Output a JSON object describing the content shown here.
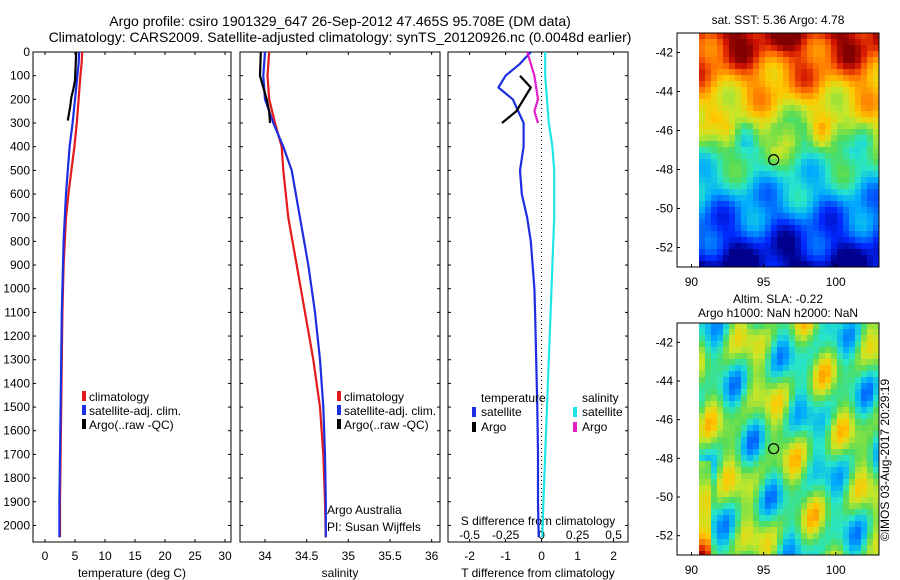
{
  "header": {
    "title_line1": "Argo profile: csiro 1901329_647 26-Sep-2012 47.465S 95.708E (DM data)",
    "title_line2": "Climatology: CARS2009. Satellite-adjusted climatology: synTS_20120926.nc (0.0048d earlier)"
  },
  "colors": {
    "climatology": "#e31a1c",
    "satellite": "#1c2ee0",
    "argo": "#000000",
    "sal_satellite": "#1fe6e6",
    "sal_argo": "#e020c8"
  },
  "chart_data": [
    {
      "type": "line",
      "name": "temperature",
      "xlabel": "temperature (deg C)",
      "ylabel": "",
      "xlim": [
        -2,
        31
      ],
      "ylim": [
        2070,
        0
      ],
      "xticks": [
        0,
        5,
        10,
        15,
        20,
        25,
        30
      ],
      "yticks": [
        0,
        100,
        200,
        300,
        400,
        500,
        600,
        700,
        800,
        900,
        1000,
        1100,
        1200,
        1300,
        1400,
        1500,
        1600,
        1700,
        1800,
        1900,
        2000
      ],
      "legend": [
        "climatology",
        "satellite-adj. clim.",
        "Argo(..raw -QC)"
      ],
      "series": [
        {
          "name": "climatology",
          "points": [
            [
              6.2,
              0
            ],
            [
              6.1,
              50
            ],
            [
              5.9,
              100
            ],
            [
              5.6,
              200
            ],
            [
              5.3,
              300
            ],
            [
              4.9,
              400
            ],
            [
              4.4,
              500
            ],
            [
              3.9,
              600
            ],
            [
              3.5,
              700
            ],
            [
              3.3,
              800
            ],
            [
              3.1,
              900
            ],
            [
              3.0,
              1000
            ],
            [
              2.9,
              1100
            ],
            [
              2.8,
              1300
            ],
            [
              2.7,
              1500
            ],
            [
              2.6,
              1700
            ],
            [
              2.5,
              1900
            ],
            [
              2.5,
              2050
            ]
          ]
        },
        {
          "name": "satellite-adj. clim.",
          "points": [
            [
              5.7,
              0
            ],
            [
              5.6,
              50
            ],
            [
              5.4,
              100
            ],
            [
              5.0,
              200
            ],
            [
              4.6,
              300
            ],
            [
              4.1,
              400
            ],
            [
              3.8,
              500
            ],
            [
              3.5,
              600
            ],
            [
              3.3,
              700
            ],
            [
              3.1,
              800
            ],
            [
              3.0,
              900
            ],
            [
              2.9,
              1000
            ],
            [
              2.8,
              1100
            ],
            [
              2.7,
              1300
            ],
            [
              2.6,
              1500
            ],
            [
              2.5,
              1700
            ],
            [
              2.4,
              1900
            ],
            [
              2.4,
              2050
            ]
          ]
        },
        {
          "name": "Argo(..raw -QC)",
          "points": [
            [
              5.2,
              0
            ],
            [
              5.1,
              60
            ],
            [
              5.0,
              120
            ],
            [
              4.7,
              160
            ],
            [
              4.4,
              190
            ],
            [
              4.2,
              230
            ],
            [
              4.0,
              260
            ],
            [
              3.8,
              290
            ]
          ]
        }
      ]
    },
    {
      "type": "line",
      "name": "salinity",
      "xlabel": "salinity",
      "ylabel": "",
      "xlim": [
        33.7,
        36.1
      ],
      "ylim": [
        2070,
        0
      ],
      "xticks": [
        34,
        34.5,
        35,
        35.5,
        36
      ],
      "legend": [
        "climatology",
        "satellite-adj. clim.",
        "Argo(..raw -QC)"
      ],
      "annotation": [
        "Argo Australia",
        "PI: Susan Wijffels"
      ],
      "series": [
        {
          "name": "climatology",
          "points": [
            [
              34.05,
              0
            ],
            [
              34.03,
              100
            ],
            [
              34.05,
              200
            ],
            [
              34.12,
              300
            ],
            [
              34.2,
              400
            ],
            [
              34.22,
              500
            ],
            [
              34.28,
              700
            ],
            [
              34.38,
              900
            ],
            [
              34.48,
              1100
            ],
            [
              34.58,
              1300
            ],
            [
              34.66,
              1500
            ],
            [
              34.7,
              1700
            ],
            [
              34.72,
              1900
            ],
            [
              34.73,
              2050
            ]
          ]
        },
        {
          "name": "satellite-adj. clim.",
          "points": [
            [
              34.0,
              0
            ],
            [
              33.98,
              100
            ],
            [
              34.0,
              200
            ],
            [
              34.1,
              300
            ],
            [
              34.22,
              400
            ],
            [
              34.32,
              500
            ],
            [
              34.42,
              700
            ],
            [
              34.52,
              900
            ],
            [
              34.6,
              1100
            ],
            [
              34.66,
              1300
            ],
            [
              34.7,
              1500
            ],
            [
              34.72,
              1700
            ],
            [
              34.73,
              1900
            ],
            [
              34.73,
              2050
            ]
          ]
        },
        {
          "name": "Argo(..raw -QC)",
          "points": [
            [
              33.95,
              0
            ],
            [
              33.94,
              100
            ],
            [
              33.98,
              150
            ],
            [
              34.02,
              200
            ],
            [
              34.05,
              250
            ],
            [
              34.06,
              300
            ]
          ]
        }
      ]
    },
    {
      "type": "line",
      "name": "difference",
      "xlabel": "T difference from climatology",
      "x2label": "S difference from climatology",
      "xlim": [
        -2.6,
        2.4
      ],
      "ylim": [
        2070,
        0
      ],
      "xticks": [
        -2,
        -1,
        0,
        1,
        2
      ],
      "x2ticks": [
        "-0.5",
        "-0.25",
        "0",
        "0.25",
        "0.5"
      ],
      "legend_temperature_title": "temperature",
      "legend_salinity_title": "salinity",
      "legend": [
        "satellite",
        "Argo",
        "satellite",
        "Argo"
      ],
      "series": [
        {
          "name": "satellite",
          "points": [
            [
              -0.3,
              0
            ],
            [
              -0.6,
              50
            ],
            [
              -1.0,
              100
            ],
            [
              -1.2,
              150
            ],
            [
              -0.8,
              200
            ],
            [
              -0.5,
              300
            ],
            [
              -0.5,
              400
            ],
            [
              -0.6,
              500
            ],
            [
              -0.55,
              600
            ],
            [
              -0.4,
              700
            ],
            [
              -0.3,
              800
            ],
            [
              -0.25,
              900
            ],
            [
              -0.2,
              1000
            ],
            [
              -0.18,
              1100
            ],
            [
              -0.15,
              1300
            ],
            [
              -0.12,
              1500
            ],
            [
              -0.1,
              1700
            ],
            [
              -0.1,
              1900
            ],
            [
              -0.08,
              2050
            ]
          ]
        },
        {
          "name": "Argo",
          "points": [
            [
              -0.6,
              100
            ],
            [
              -0.3,
              150
            ],
            [
              -0.5,
              200
            ],
            [
              -0.7,
              250
            ],
            [
              -1.1,
              300
            ]
          ]
        },
        {
          "name": "satellite",
          "points": [
            [
              0.1,
              0
            ],
            [
              0.1,
              100
            ],
            [
              0.15,
              200
            ],
            [
              0.2,
              300
            ],
            [
              0.3,
              400
            ],
            [
              0.35,
              500
            ],
            [
              0.35,
              700
            ],
            [
              0.3,
              900
            ],
            [
              0.25,
              1100
            ],
            [
              0.2,
              1300
            ],
            [
              0.15,
              1500
            ],
            [
              0.1,
              1700
            ],
            [
              0.05,
              1900
            ],
            [
              0.02,
              2050
            ]
          ]
        },
        {
          "name": "Argo",
          "points": [
            [
              -0.4,
              0
            ],
            [
              -0.3,
              50
            ],
            [
              -0.2,
              100
            ],
            [
              -0.1,
              200
            ],
            [
              -0.2,
              250
            ],
            [
              -0.1,
              300
            ]
          ]
        }
      ]
    },
    {
      "type": "heatmap",
      "name": "sst-map",
      "title": "sat. SST: 5.36 Argo: 4.78",
      "xlim": [
        89,
        103
      ],
      "ylim": [
        -53,
        -41
      ],
      "xticks": [
        90,
        95,
        100
      ],
      "yticks": [
        -42,
        -44,
        -46,
        -48,
        -50,
        -52
      ],
      "marker": {
        "lon": 95.7,
        "lat": -47.5
      }
    },
    {
      "type": "heatmap",
      "name": "sla-map",
      "title_line1": "Altim. SLA: -0.22",
      "title_line2": "Argo h1000: NaN h2000: NaN",
      "xlim": [
        89,
        103
      ],
      "ylim": [
        -53,
        -41
      ],
      "xticks": [
        90,
        95,
        100
      ],
      "yticks": [
        -42,
        -44,
        -46,
        -48,
        -50,
        -52
      ],
      "marker": {
        "lon": 95.7,
        "lat": -47.5
      }
    }
  ],
  "footer": {
    "credit": "©IMOS 03-Aug-2017 20:29:19"
  }
}
